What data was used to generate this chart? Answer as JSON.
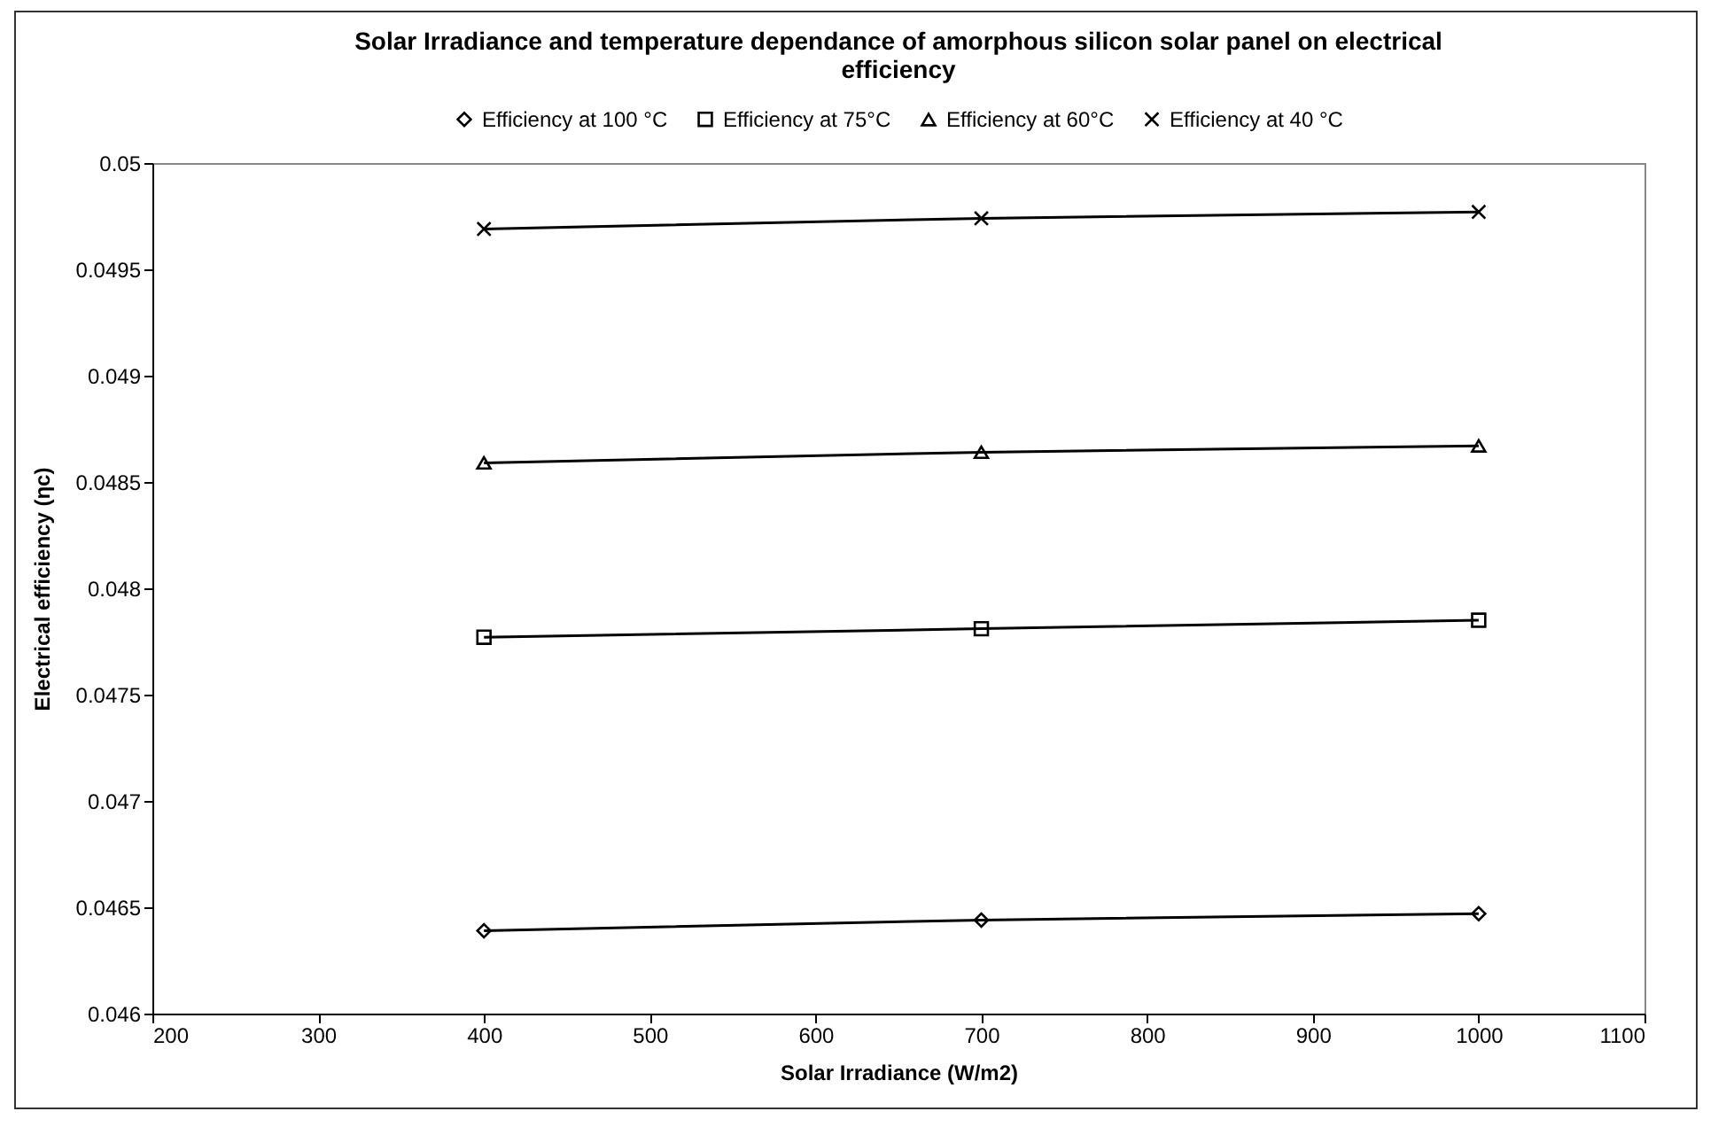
{
  "chart_data": {
    "type": "line",
    "title": "Solar Irradiance and temperature dependance of amorphous silicon solar panel on electrical efficiency",
    "xlabel": "Solar Irradiance (W/m2)",
    "ylabel": "Electrical efficiency (ηc)",
    "x": [
      400,
      700,
      1000
    ],
    "series": [
      {
        "name": "Efficiency at 100 °C",
        "color": "#000000",
        "marker": "diamond",
        "values": [
          0.04639,
          0.04644,
          0.04647
        ]
      },
      {
        "name": "Efficiency at 75°C",
        "color": "#000000",
        "marker": "square",
        "values": [
          0.04777,
          0.04781,
          0.04785
        ]
      },
      {
        "name": "Efficiency at 60°C",
        "color": "#000000",
        "marker": "triangle",
        "values": [
          0.04859,
          0.04864,
          0.04867
        ]
      },
      {
        "name": "Efficiency at 40 °C",
        "color": "#000000",
        "marker": "cross",
        "values": [
          0.04969,
          0.04974,
          0.04977
        ]
      }
    ],
    "xlim": [
      200,
      1100
    ],
    "xticks": [
      200,
      300,
      400,
      500,
      600,
      700,
      800,
      900,
      1000,
      1100
    ],
    "ylim": [
      0.046,
      0.05
    ],
    "yticks": [
      0.046,
      0.0465,
      0.047,
      0.0475,
      0.048,
      0.0485,
      0.049,
      0.0495,
      0.05
    ],
    "legend": "top",
    "grid": false,
    "line_style": "solid"
  }
}
